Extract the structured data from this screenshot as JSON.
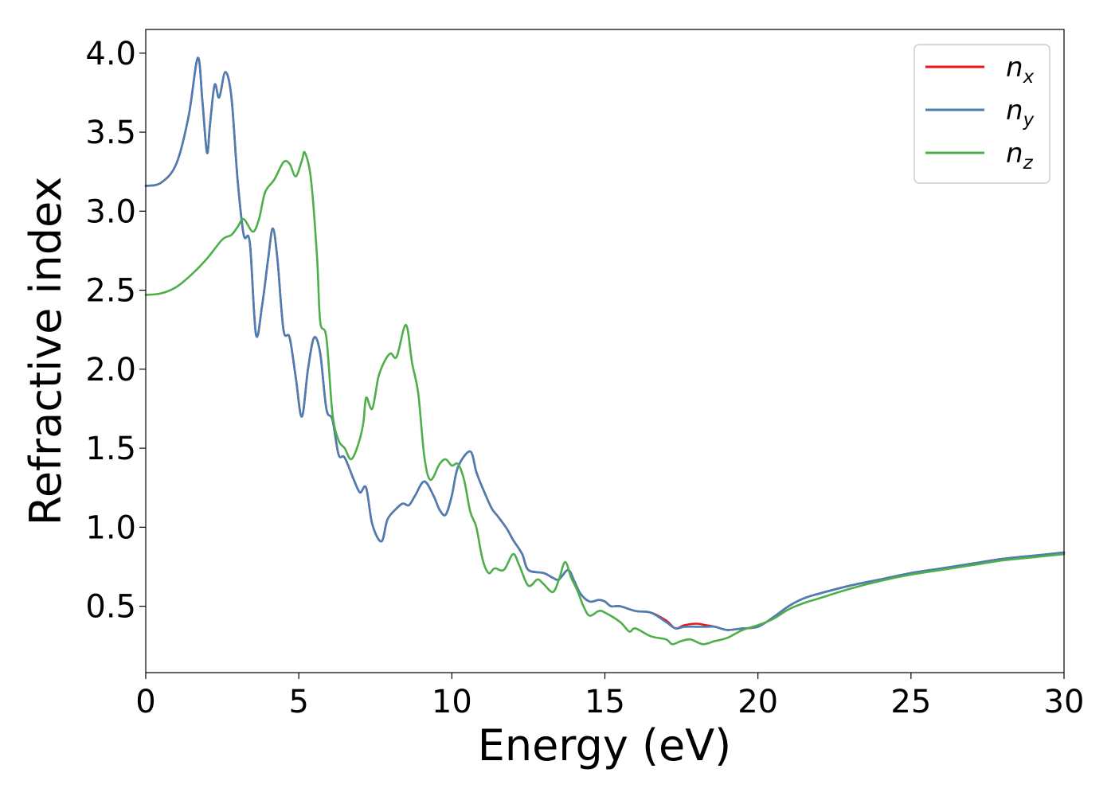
{
  "chart_data": {
    "type": "line",
    "title": "",
    "xlabel": "Energy (eV)",
    "ylabel": "Refractive index",
    "xlim": [
      0,
      30
    ],
    "ylim": [
      0.08,
      4.15
    ],
    "x_ticks": [
      0,
      5,
      10,
      15,
      20,
      25,
      30
    ],
    "x_tick_labels": [
      "0",
      "5",
      "10",
      "15",
      "20",
      "25",
      "30"
    ],
    "y_ticks": [
      0.5,
      1.0,
      1.5,
      2.0,
      2.5,
      3.0,
      3.5,
      4.0
    ],
    "y_tick_labels": [
      "0.5",
      "1.0",
      "1.5",
      "2.0",
      "2.5",
      "3.0",
      "3.5",
      "4.0"
    ],
    "grid": false,
    "legend_position": "top-right",
    "series": [
      {
        "name": "n",
        "subscript": "x",
        "color": "#e41a1c",
        "points": [
          [
            0,
            3.16
          ],
          [
            0.5,
            3.18
          ],
          [
            1.0,
            3.3
          ],
          [
            1.4,
            3.6
          ],
          [
            1.7,
            3.97
          ],
          [
            1.85,
            3.7
          ],
          [
            2.0,
            3.37
          ],
          [
            2.1,
            3.55
          ],
          [
            2.25,
            3.8
          ],
          [
            2.4,
            3.72
          ],
          [
            2.6,
            3.88
          ],
          [
            2.8,
            3.72
          ],
          [
            3.0,
            3.2
          ],
          [
            3.2,
            2.85
          ],
          [
            3.4,
            2.8
          ],
          [
            3.6,
            2.22
          ],
          [
            3.8,
            2.4
          ],
          [
            4.0,
            2.7
          ],
          [
            4.15,
            2.89
          ],
          [
            4.3,
            2.7
          ],
          [
            4.5,
            2.25
          ],
          [
            4.7,
            2.2
          ],
          [
            4.9,
            1.95
          ],
          [
            5.1,
            1.7
          ],
          [
            5.3,
            2.0
          ],
          [
            5.5,
            2.2
          ],
          [
            5.7,
            2.1
          ],
          [
            5.9,
            1.75
          ],
          [
            6.1,
            1.68
          ],
          [
            6.3,
            1.46
          ],
          [
            6.5,
            1.44
          ],
          [
            6.8,
            1.3
          ],
          [
            7.0,
            1.22
          ],
          [
            7.2,
            1.25
          ],
          [
            7.4,
            1.02
          ],
          [
            7.7,
            0.91
          ],
          [
            7.9,
            1.05
          ],
          [
            8.2,
            1.12
          ],
          [
            8.4,
            1.15
          ],
          [
            8.6,
            1.14
          ],
          [
            8.8,
            1.2
          ],
          [
            9.1,
            1.29
          ],
          [
            9.4,
            1.2
          ],
          [
            9.6,
            1.11
          ],
          [
            9.8,
            1.08
          ],
          [
            10.0,
            1.2
          ],
          [
            10.2,
            1.38
          ],
          [
            10.6,
            1.48
          ],
          [
            10.8,
            1.35
          ],
          [
            11.0,
            1.25
          ],
          [
            11.3,
            1.12
          ],
          [
            11.5,
            1.07
          ],
          [
            11.8,
            0.99
          ],
          [
            12.0,
            0.92
          ],
          [
            12.3,
            0.83
          ],
          [
            12.5,
            0.73
          ],
          [
            13.0,
            0.71
          ],
          [
            13.3,
            0.68
          ],
          [
            13.5,
            0.67
          ],
          [
            13.8,
            0.73
          ],
          [
            14.0,
            0.66
          ],
          [
            14.2,
            0.58
          ],
          [
            14.5,
            0.53
          ],
          [
            14.8,
            0.54
          ],
          [
            15.0,
            0.53
          ],
          [
            15.2,
            0.5
          ],
          [
            15.5,
            0.5
          ],
          [
            16.0,
            0.47
          ],
          [
            16.5,
            0.46
          ],
          [
            17.0,
            0.41
          ],
          [
            17.3,
            0.36
          ],
          [
            17.6,
            0.38
          ],
          [
            18.0,
            0.39
          ],
          [
            18.3,
            0.38
          ],
          [
            18.6,
            0.37
          ],
          [
            19.0,
            0.35
          ],
          [
            19.5,
            0.36
          ],
          [
            20.0,
            0.37
          ],
          [
            20.5,
            0.43
          ],
          [
            21.0,
            0.5
          ],
          [
            21.5,
            0.55
          ],
          [
            22.0,
            0.58
          ],
          [
            23.0,
            0.63
          ],
          [
            24.0,
            0.67
          ],
          [
            25.0,
            0.71
          ],
          [
            26.0,
            0.74
          ],
          [
            27.0,
            0.77
          ],
          [
            28.0,
            0.8
          ],
          [
            29.0,
            0.82
          ],
          [
            30.0,
            0.84
          ]
        ]
      },
      {
        "name": "n",
        "subscript": "y",
        "color": "#4a7eb4",
        "points": [
          [
            0,
            3.16
          ],
          [
            0.5,
            3.18
          ],
          [
            1.0,
            3.3
          ],
          [
            1.4,
            3.6
          ],
          [
            1.7,
            3.97
          ],
          [
            1.85,
            3.7
          ],
          [
            2.0,
            3.37
          ],
          [
            2.1,
            3.55
          ],
          [
            2.25,
            3.8
          ],
          [
            2.4,
            3.72
          ],
          [
            2.6,
            3.88
          ],
          [
            2.8,
            3.72
          ],
          [
            3.0,
            3.2
          ],
          [
            3.2,
            2.85
          ],
          [
            3.4,
            2.8
          ],
          [
            3.6,
            2.22
          ],
          [
            3.8,
            2.4
          ],
          [
            4.0,
            2.7
          ],
          [
            4.15,
            2.89
          ],
          [
            4.3,
            2.7
          ],
          [
            4.5,
            2.25
          ],
          [
            4.7,
            2.2
          ],
          [
            4.9,
            1.95
          ],
          [
            5.1,
            1.7
          ],
          [
            5.3,
            2.0
          ],
          [
            5.5,
            2.2
          ],
          [
            5.7,
            2.1
          ],
          [
            5.9,
            1.75
          ],
          [
            6.1,
            1.68
          ],
          [
            6.3,
            1.46
          ],
          [
            6.5,
            1.44
          ],
          [
            6.8,
            1.3
          ],
          [
            7.0,
            1.22
          ],
          [
            7.2,
            1.25
          ],
          [
            7.4,
            1.02
          ],
          [
            7.7,
            0.91
          ],
          [
            7.9,
            1.05
          ],
          [
            8.2,
            1.12
          ],
          [
            8.4,
            1.15
          ],
          [
            8.6,
            1.14
          ],
          [
            8.8,
            1.2
          ],
          [
            9.1,
            1.29
          ],
          [
            9.4,
            1.2
          ],
          [
            9.6,
            1.11
          ],
          [
            9.8,
            1.08
          ],
          [
            10.0,
            1.2
          ],
          [
            10.2,
            1.38
          ],
          [
            10.6,
            1.48
          ],
          [
            10.8,
            1.35
          ],
          [
            11.0,
            1.25
          ],
          [
            11.3,
            1.12
          ],
          [
            11.5,
            1.07
          ],
          [
            11.8,
            0.99
          ],
          [
            12.0,
            0.92
          ],
          [
            12.3,
            0.83
          ],
          [
            12.5,
            0.73
          ],
          [
            13.0,
            0.71
          ],
          [
            13.3,
            0.68
          ],
          [
            13.5,
            0.67
          ],
          [
            13.8,
            0.73
          ],
          [
            14.0,
            0.66
          ],
          [
            14.2,
            0.58
          ],
          [
            14.5,
            0.53
          ],
          [
            14.8,
            0.54
          ],
          [
            15.0,
            0.53
          ],
          [
            15.2,
            0.5
          ],
          [
            15.5,
            0.5
          ],
          [
            16.0,
            0.47
          ],
          [
            16.5,
            0.46
          ],
          [
            17.0,
            0.4
          ],
          [
            17.3,
            0.36
          ],
          [
            17.6,
            0.37
          ],
          [
            18.0,
            0.37
          ],
          [
            18.3,
            0.37
          ],
          [
            18.6,
            0.37
          ],
          [
            19.0,
            0.35
          ],
          [
            19.5,
            0.36
          ],
          [
            20.0,
            0.37
          ],
          [
            20.5,
            0.43
          ],
          [
            21.0,
            0.5
          ],
          [
            21.5,
            0.55
          ],
          [
            22.0,
            0.58
          ],
          [
            23.0,
            0.63
          ],
          [
            24.0,
            0.67
          ],
          [
            25.0,
            0.71
          ],
          [
            26.0,
            0.74
          ],
          [
            27.0,
            0.77
          ],
          [
            28.0,
            0.8
          ],
          [
            29.0,
            0.82
          ],
          [
            30.0,
            0.84
          ]
        ]
      },
      {
        "name": "n",
        "subscript": "z",
        "color": "#4daf4a",
        "points": [
          [
            0,
            2.47
          ],
          [
            0.5,
            2.48
          ],
          [
            1.0,
            2.52
          ],
          [
            1.5,
            2.6
          ],
          [
            2.0,
            2.7
          ],
          [
            2.5,
            2.82
          ],
          [
            2.8,
            2.85
          ],
          [
            3.0,
            2.9
          ],
          [
            3.2,
            2.95
          ],
          [
            3.5,
            2.87
          ],
          [
            3.7,
            2.95
          ],
          [
            3.9,
            3.12
          ],
          [
            4.2,
            3.2
          ],
          [
            4.5,
            3.31
          ],
          [
            4.7,
            3.3
          ],
          [
            4.9,
            3.22
          ],
          [
            5.1,
            3.32
          ],
          [
            5.2,
            3.37
          ],
          [
            5.4,
            3.2
          ],
          [
            5.6,
            2.7
          ],
          [
            5.7,
            2.3
          ],
          [
            5.9,
            2.2
          ],
          [
            6.1,
            1.72
          ],
          [
            6.3,
            1.55
          ],
          [
            6.5,
            1.5
          ],
          [
            6.7,
            1.43
          ],
          [
            6.9,
            1.5
          ],
          [
            7.1,
            1.65
          ],
          [
            7.2,
            1.82
          ],
          [
            7.4,
            1.75
          ],
          [
            7.6,
            1.95
          ],
          [
            7.8,
            2.05
          ],
          [
            8.0,
            2.1
          ],
          [
            8.2,
            2.08
          ],
          [
            8.5,
            2.28
          ],
          [
            8.7,
            2.04
          ],
          [
            8.9,
            1.85
          ],
          [
            9.1,
            1.45
          ],
          [
            9.3,
            1.3
          ],
          [
            9.6,
            1.4
          ],
          [
            9.8,
            1.43
          ],
          [
            10.0,
            1.39
          ],
          [
            10.2,
            1.4
          ],
          [
            10.4,
            1.3
          ],
          [
            10.6,
            1.1
          ],
          [
            10.8,
            1.0
          ],
          [
            11.0,
            0.8
          ],
          [
            11.2,
            0.71
          ],
          [
            11.4,
            0.74
          ],
          [
            11.7,
            0.73
          ],
          [
            12.0,
            0.83
          ],
          [
            12.2,
            0.76
          ],
          [
            12.5,
            0.63
          ],
          [
            12.8,
            0.67
          ],
          [
            13.0,
            0.64
          ],
          [
            13.3,
            0.59
          ],
          [
            13.5,
            0.67
          ],
          [
            13.7,
            0.78
          ],
          [
            13.9,
            0.68
          ],
          [
            14.1,
            0.6
          ],
          [
            14.3,
            0.5
          ],
          [
            14.5,
            0.44
          ],
          [
            14.8,
            0.47
          ],
          [
            15.0,
            0.46
          ],
          [
            15.5,
            0.4
          ],
          [
            15.8,
            0.34
          ],
          [
            16.0,
            0.36
          ],
          [
            16.5,
            0.31
          ],
          [
            17.0,
            0.29
          ],
          [
            17.2,
            0.26
          ],
          [
            17.5,
            0.28
          ],
          [
            17.8,
            0.29
          ],
          [
            18.2,
            0.26
          ],
          [
            18.6,
            0.28
          ],
          [
            19.0,
            0.3
          ],
          [
            19.5,
            0.35
          ],
          [
            20.0,
            0.38
          ],
          [
            20.5,
            0.42
          ],
          [
            21.0,
            0.48
          ],
          [
            21.5,
            0.52
          ],
          [
            22.0,
            0.55
          ],
          [
            23.0,
            0.61
          ],
          [
            24.0,
            0.66
          ],
          [
            25.0,
            0.7
          ],
          [
            26.0,
            0.73
          ],
          [
            27.0,
            0.76
          ],
          [
            28.0,
            0.79
          ],
          [
            29.0,
            0.81
          ],
          [
            30.0,
            0.83
          ]
        ]
      }
    ]
  }
}
